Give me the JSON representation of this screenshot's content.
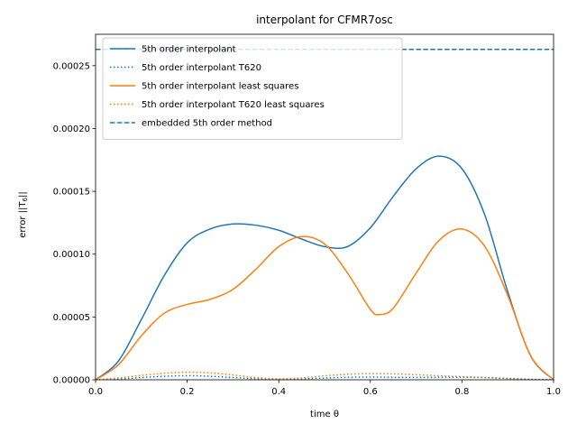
{
  "chart_data": {
    "type": "line",
    "title": "interpolant for CFMR7osc",
    "xlabel": "time θ",
    "ylabel": "error ||T6||",
    "xlim": [
      0.0,
      1.0
    ],
    "ylim": [
      0.0,
      0.000275
    ],
    "xticks": [
      "0.0",
      "0.2",
      "0.4",
      "0.6",
      "0.8",
      "1.0"
    ],
    "yticks": [
      "0.00000",
      "0.00005",
      "0.00010",
      "0.00015",
      "0.00020",
      "0.00025"
    ],
    "legend_position": "top-left",
    "grid": false,
    "series": [
      {
        "name": "5th order interpolant",
        "color": "#1f77b4",
        "style": "solid",
        "x": [
          0.0,
          0.05,
          0.1,
          0.15,
          0.2,
          0.25,
          0.3,
          0.35,
          0.4,
          0.45,
          0.5,
          0.55,
          0.6,
          0.65,
          0.7,
          0.75,
          0.8,
          0.85,
          0.9,
          0.95,
          1.0
        ],
        "y": [
          0.0,
          1.5e-05,
          4.8e-05,
          8.3e-05,
          0.000109,
          0.00012,
          0.000124,
          0.000123,
          0.000119,
          0.000112,
          0.000106,
          0.000106,
          0.000121,
          0.000146,
          0.000168,
          0.000178,
          0.000168,
          0.000131,
          7e-05,
          1.9e-05,
          0.0
        ]
      },
      {
        "name": "5th order interpolant T620",
        "color": "#1f77b4",
        "style": "dotted",
        "x": [
          0.0,
          0.05,
          0.1,
          0.15,
          0.2,
          0.25,
          0.3,
          0.35,
          0.4,
          0.45,
          0.5,
          0.55,
          0.6,
          0.65,
          0.7,
          0.75,
          0.8,
          0.85,
          0.9,
          0.95,
          1.0
        ],
        "y": [
          0.0,
          6e-07,
          1.8e-06,
          2.8e-06,
          3.2e-06,
          2.8e-06,
          1.8e-06,
          8e-07,
          3e-07,
          7e-07,
          1.4e-06,
          2e-06,
          2.2e-06,
          2e-06,
          1.9e-06,
          2e-06,
          2.1e-06,
          1.8e-06,
          1.1e-06,
          4e-07,
          0.0
        ]
      },
      {
        "name": "5th order interpolant least squares",
        "color": "#ff7f0e",
        "style": "solid",
        "x": [
          0.0,
          0.05,
          0.1,
          0.15,
          0.2,
          0.25,
          0.3,
          0.35,
          0.4,
          0.45,
          0.5,
          0.55,
          0.6,
          0.62,
          0.65,
          0.7,
          0.75,
          0.8,
          0.85,
          0.9,
          0.95,
          1.0
        ],
        "y": [
          0.0,
          1.2e-05,
          3.5e-05,
          5.3e-05,
          6e-05,
          6.4e-05,
          7.2e-05,
          8.8e-05,
          0.000106,
          0.000114,
          0.000108,
          8.5e-05,
          5.6e-05,
          5.2e-05,
          5.7e-05,
          8.5e-05,
          0.000111,
          0.00012,
          0.000106,
          6.7e-05,
          1.9e-05,
          0.0
        ]
      },
      {
        "name": "5th order interpolant T620 least squares",
        "color": "#ff7f0e",
        "style": "dotted",
        "x": [
          0.0,
          0.05,
          0.1,
          0.15,
          0.2,
          0.25,
          0.3,
          0.35,
          0.4,
          0.45,
          0.5,
          0.55,
          0.6,
          0.65,
          0.7,
          0.75,
          0.8,
          0.85,
          0.9,
          0.95,
          1.0
        ],
        "y": [
          0.0,
          1.5e-06,
          3.5e-06,
          5.2e-06,
          6e-06,
          5.5e-06,
          3.8e-06,
          1.8e-06,
          8e-07,
          1.5e-06,
          3.2e-06,
          4.4e-06,
          4.9e-06,
          4.7e-06,
          4e-06,
          3.2e-06,
          2.5e-06,
          1.7e-06,
          9e-07,
          3e-07,
          0.0
        ]
      },
      {
        "name": "embedded 5th order method",
        "color": "#1f77b4",
        "style": "dashed",
        "x": [
          0.0,
          1.0
        ],
        "y": [
          0.000263,
          0.000263
        ]
      }
    ]
  }
}
